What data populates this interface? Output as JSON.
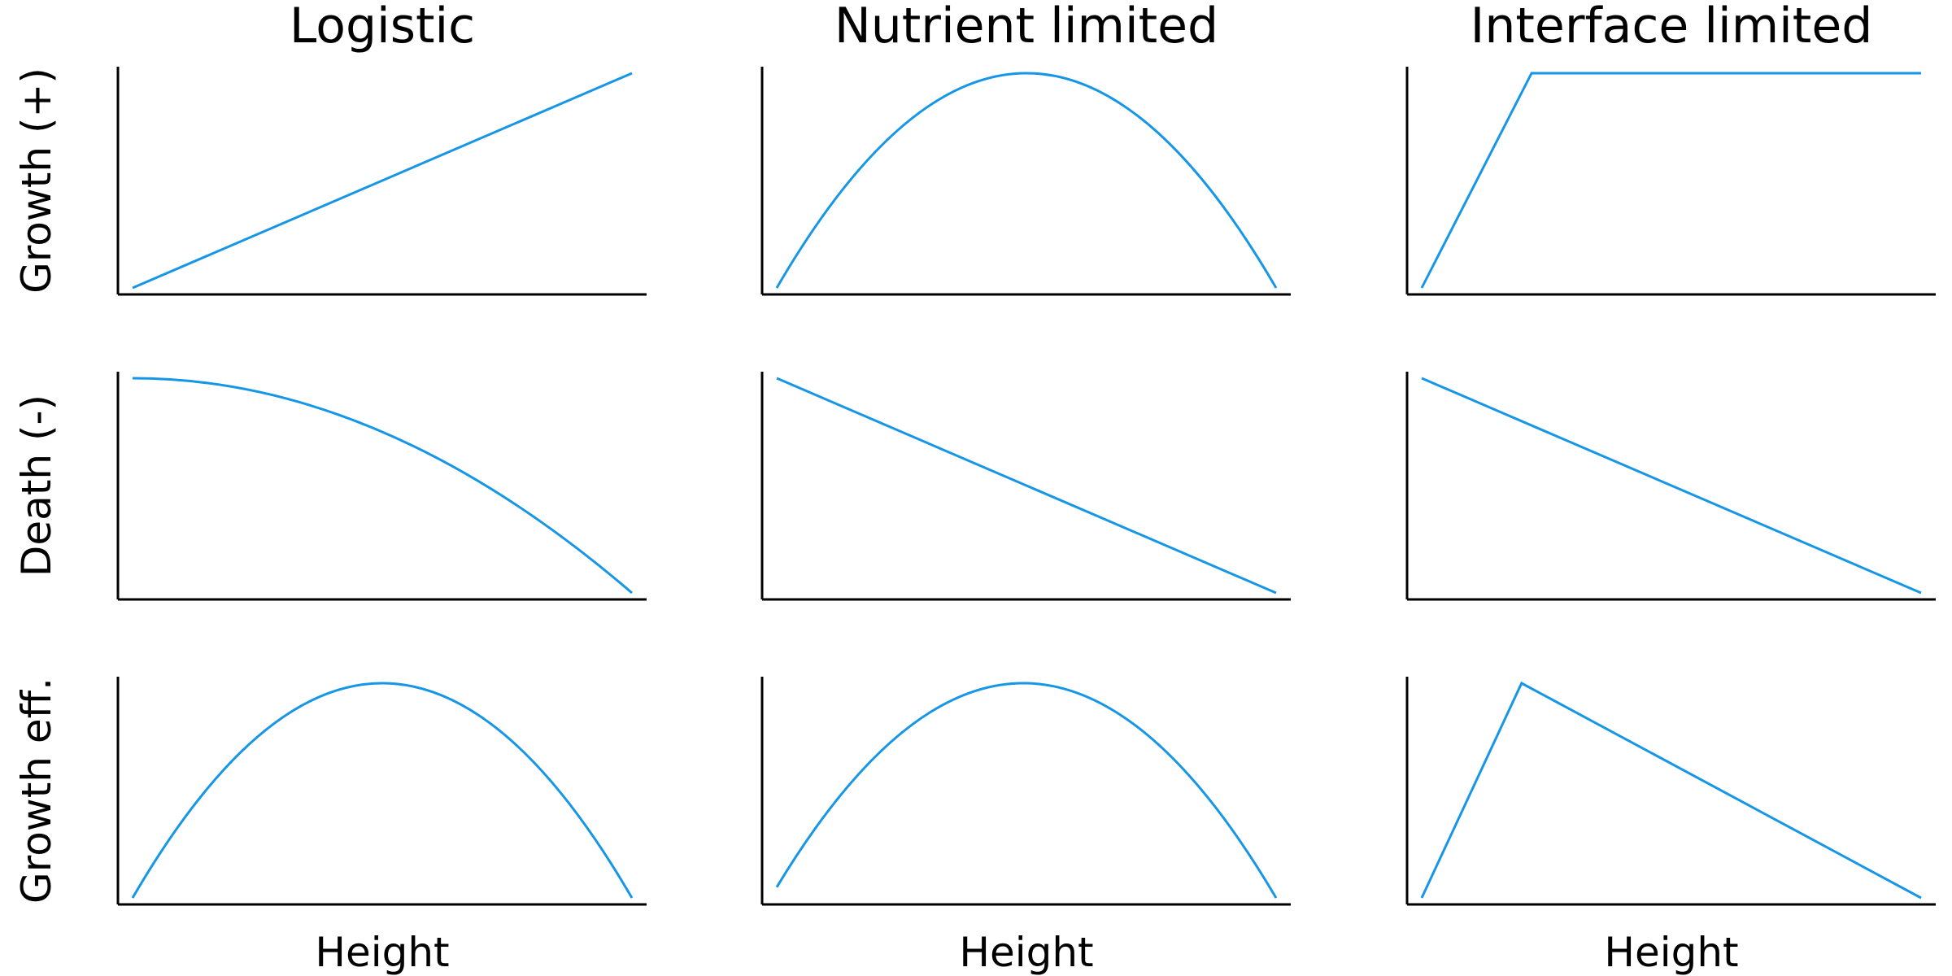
{
  "columns": [
    "Logistic",
    "Nutrient limited",
    "Interface limited"
  ],
  "rows": [
    "Growth (+)",
    "Death (-)",
    "Growth eff."
  ],
  "series_color": "#1696e6",
  "chart_data": [
    {
      "type": "line",
      "column": "Logistic",
      "row": "Growth (+)",
      "xlabel": "",
      "ylabel": "Growth (+)",
      "ylim": [
        0,
        1
      ],
      "x": [
        0,
        1
      ],
      "y": [
        0,
        1
      ]
    },
    {
      "type": "line",
      "column": "Nutrient limited",
      "row": "Growth (+)",
      "xlabel": "",
      "ylabel": "",
      "ylim": [
        0,
        1
      ],
      "x": [
        0,
        0.1,
        0.2,
        0.3,
        0.4,
        0.5,
        0.6,
        0.7,
        0.8,
        0.9,
        1
      ],
      "y": [
        0,
        0.36,
        0.64,
        0.84,
        0.96,
        1,
        0.96,
        0.84,
        0.64,
        0.36,
        0
      ]
    },
    {
      "type": "line",
      "column": "Interface limited",
      "row": "Growth (+)",
      "xlabel": "",
      "ylabel": "",
      "ylim": [
        0,
        1
      ],
      "x": [
        0,
        0.22,
        1
      ],
      "y": [
        0,
        1,
        1
      ]
    },
    {
      "type": "line",
      "column": "Logistic",
      "row": "Death (-)",
      "xlabel": "",
      "ylabel": "Death (-)",
      "ylim": [
        0,
        1
      ],
      "x": [
        0,
        0.1,
        0.2,
        0.3,
        0.4,
        0.5,
        0.6,
        0.7,
        0.8,
        0.9,
        1
      ],
      "y": [
        1,
        0.99,
        0.96,
        0.91,
        0.84,
        0.75,
        0.64,
        0.51,
        0.36,
        0.19,
        0
      ]
    },
    {
      "type": "line",
      "column": "Nutrient limited",
      "row": "Death (-)",
      "xlabel": "",
      "ylabel": "",
      "ylim": [
        0,
        1
      ],
      "x": [
        0,
        1
      ],
      "y": [
        1,
        0
      ]
    },
    {
      "type": "line",
      "column": "Interface limited",
      "row": "Death (-)",
      "xlabel": "",
      "ylabel": "",
      "ylim": [
        0,
        1
      ],
      "x": [
        0,
        1
      ],
      "y": [
        1,
        0
      ]
    },
    {
      "type": "line",
      "column": "Logistic",
      "row": "Growth eff.",
      "xlabel": "Height",
      "ylabel": "Growth eff.",
      "ylim": [
        0,
        1
      ],
      "x": [
        0,
        0.1,
        0.2,
        0.3,
        0.4,
        0.5,
        0.6,
        0.7,
        0.8,
        0.9,
        1
      ],
      "y": [
        0,
        0.36,
        0.64,
        0.84,
        0.96,
        1,
        0.96,
        0.84,
        0.64,
        0.36,
        0
      ]
    },
    {
      "type": "line",
      "column": "Nutrient limited",
      "row": "Growth eff.",
      "xlabel": "Height",
      "ylabel": "",
      "ylim": [
        0,
        1
      ],
      "x": [
        0,
        0.1,
        0.2,
        0.3,
        0.4,
        0.5,
        0.6,
        0.7,
        0.8,
        0.9,
        1
      ],
      "y": [
        0.05,
        0.39,
        0.66,
        0.85,
        0.96,
        1,
        0.96,
        0.85,
        0.66,
        0.39,
        0
      ]
    },
    {
      "type": "line",
      "column": "Interface limited",
      "row": "Growth eff.",
      "xlabel": "Height",
      "ylabel": "",
      "ylim": [
        0,
        1
      ],
      "x": [
        0,
        0.2,
        1
      ],
      "y": [
        0,
        1,
        0
      ]
    }
  ]
}
